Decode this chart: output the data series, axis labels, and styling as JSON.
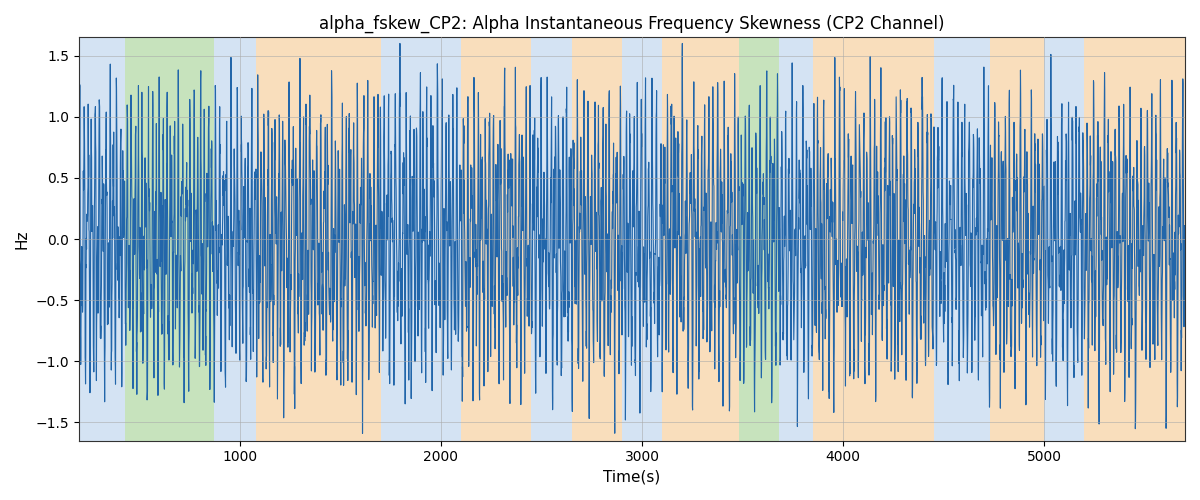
{
  "title": "alpha_fskew_CP2: Alpha Instantaneous Frequency Skewness (CP2 Channel)",
  "xlabel": "Time(s)",
  "ylabel": "Hz",
  "ylim": [
    -1.65,
    1.65
  ],
  "xlim": [
    200,
    5700
  ],
  "line_color": "#2266aa",
  "line_width": 0.8,
  "background_color": "#ffffff",
  "grid_color": "#aaaaaa",
  "seed": 42,
  "x_start": 200,
  "x_end": 5700,
  "bands": [
    {
      "xmin": 200,
      "xmax": 430,
      "color": "#aac8e8",
      "alpha": 0.5
    },
    {
      "xmin": 430,
      "xmax": 870,
      "color": "#90c97c",
      "alpha": 0.5
    },
    {
      "xmin": 870,
      "xmax": 1080,
      "color": "#aac8e8",
      "alpha": 0.5
    },
    {
      "xmin": 1080,
      "xmax": 1700,
      "color": "#f5bf7a",
      "alpha": 0.5
    },
    {
      "xmin": 1700,
      "xmax": 2100,
      "color": "#aac8e8",
      "alpha": 0.5
    },
    {
      "xmin": 2100,
      "xmax": 2450,
      "color": "#f5bf7a",
      "alpha": 0.5
    },
    {
      "xmin": 2450,
      "xmax": 2650,
      "color": "#aac8e8",
      "alpha": 0.5
    },
    {
      "xmin": 2650,
      "xmax": 2900,
      "color": "#f5bf7a",
      "alpha": 0.5
    },
    {
      "xmin": 2900,
      "xmax": 3100,
      "color": "#aac8e8",
      "alpha": 0.5
    },
    {
      "xmin": 3100,
      "xmax": 3480,
      "color": "#f5bf7a",
      "alpha": 0.5
    },
    {
      "xmin": 3480,
      "xmax": 3680,
      "color": "#90c97c",
      "alpha": 0.5
    },
    {
      "xmin": 3680,
      "xmax": 3850,
      "color": "#aac8e8",
      "alpha": 0.5
    },
    {
      "xmin": 3850,
      "xmax": 4450,
      "color": "#f5bf7a",
      "alpha": 0.5
    },
    {
      "xmin": 4450,
      "xmax": 4730,
      "color": "#aac8e8",
      "alpha": 0.5
    },
    {
      "xmin": 4730,
      "xmax": 5000,
      "color": "#f5bf7a",
      "alpha": 0.5
    },
    {
      "xmin": 5000,
      "xmax": 5200,
      "color": "#aac8e8",
      "alpha": 0.5
    },
    {
      "xmin": 5200,
      "xmax": 5700,
      "color": "#f5bf7a",
      "alpha": 0.5
    }
  ],
  "xticks": [
    1000,
    2000,
    3000,
    4000,
    5000
  ],
  "yticks": [
    -1.5,
    -1.0,
    -0.5,
    0.0,
    0.5,
    1.0,
    1.5
  ]
}
